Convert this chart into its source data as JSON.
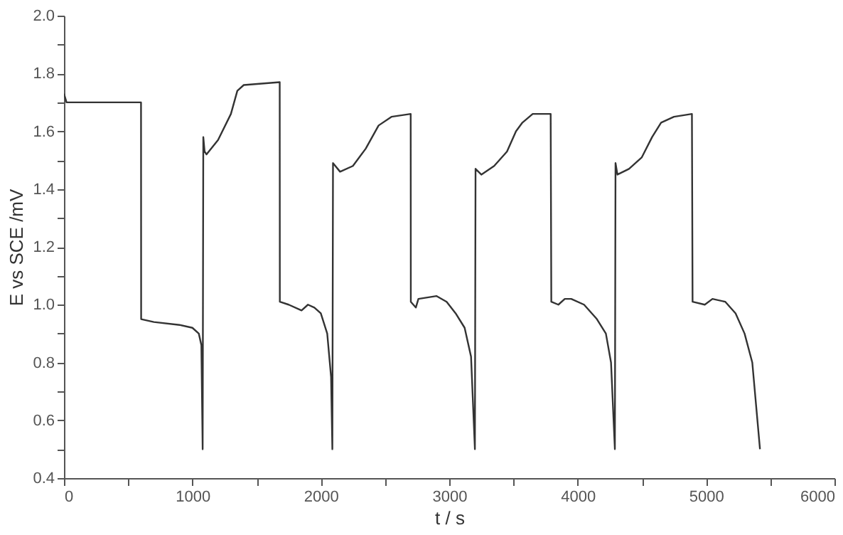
{
  "chart_data": {
    "type": "line",
    "xlabel": "t / s",
    "ylabel": "E vs SCE /mV",
    "xlim": [
      0,
      6000
    ],
    "ylim": [
      0.4,
      2.0
    ],
    "xticks": [
      0,
      {
        "value": 500,
        "label": null
      },
      1000,
      {
        "value": 1500,
        "label": null
      },
      2000,
      {
        "value": 2500,
        "label": null
      },
      3000,
      {
        "value": 3500,
        "label": null
      },
      4000,
      {
        "value": 4500,
        "label": null
      },
      5000,
      {
        "value": 5500,
        "label": null
      },
      6000
    ],
    "yticks": [
      0.4,
      {
        "value": 0.5,
        "label": null
      },
      0.6,
      {
        "value": 0.7,
        "label": null
      },
      0.8,
      {
        "value": 0.9,
        "label": null
      },
      {
        "value": 1.0,
        "label": "1.0"
      },
      {
        "value": 1.1,
        "label": null
      },
      1.2,
      {
        "value": 1.3,
        "label": null
      },
      1.4,
      {
        "value": 1.5,
        "label": null
      },
      1.6,
      {
        "value": 1.7,
        "label": null
      },
      1.8,
      {
        "value": 1.9,
        "label": null
      },
      {
        "value": 2.0,
        "label": "2.0"
      }
    ],
    "grid": false,
    "marker": "none",
    "line_style": "solid",
    "series": [
      {
        "color": "#333333",
        "x": [
          0,
          20,
          50,
          300,
          600,
          601,
          700,
          900,
          1000,
          1050,
          1070,
          1080,
          1085,
          1095,
          1110,
          1200,
          1300,
          1350,
          1400,
          1680,
          1681,
          1750,
          1850,
          1900,
          1950,
          2000,
          2050,
          2080,
          2090,
          2095,
          2150,
          2250,
          2350,
          2450,
          2550,
          2700,
          2701,
          2740,
          2760,
          2900,
          2980,
          3050,
          3120,
          3170,
          3200,
          3205,
          3250,
          3350,
          3450,
          3520,
          3570,
          3650,
          3790,
          3795,
          3850,
          3900,
          3950,
          4050,
          4150,
          4220,
          4260,
          4290,
          4295,
          4310,
          4400,
          4500,
          4580,
          4650,
          4750,
          4890,
          4895,
          4990,
          5050,
          5150,
          5230,
          5300,
          5360,
          5420
        ],
        "values": [
          1.73,
          1.7,
          1.7,
          1.7,
          1.7,
          0.95,
          0.94,
          0.93,
          0.92,
          0.9,
          0.86,
          0.5,
          1.58,
          1.53,
          1.52,
          1.57,
          1.66,
          1.74,
          1.76,
          1.77,
          1.01,
          1.0,
          0.98,
          1.0,
          0.99,
          0.97,
          0.9,
          0.75,
          0.5,
          1.49,
          1.46,
          1.48,
          1.54,
          1.62,
          1.65,
          1.66,
          1.01,
          0.99,
          1.02,
          1.03,
          1.01,
          0.97,
          0.92,
          0.82,
          0.5,
          1.47,
          1.45,
          1.48,
          1.53,
          1.6,
          1.63,
          1.66,
          1.66,
          1.01,
          1.0,
          1.02,
          1.02,
          1.0,
          0.95,
          0.9,
          0.8,
          0.5,
          1.49,
          1.45,
          1.47,
          1.51,
          1.58,
          1.63,
          1.65,
          1.66,
          1.01,
          1.0,
          1.02,
          1.01,
          0.97,
          0.9,
          0.8,
          0.5
        ]
      }
    ]
  }
}
